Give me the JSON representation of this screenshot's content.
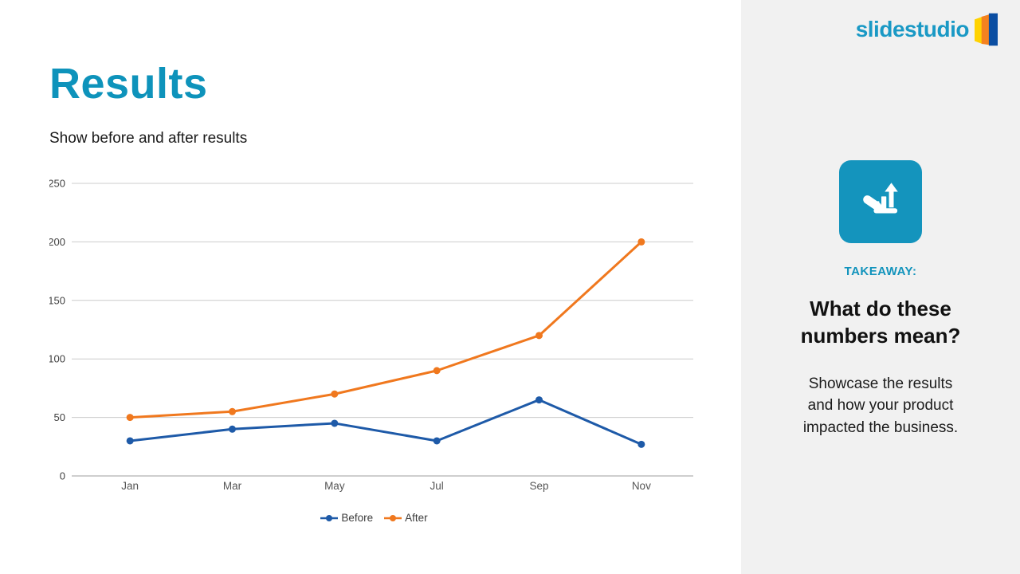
{
  "header": {
    "title": "Results",
    "subtitle": "Show before and after results"
  },
  "chart_data": {
    "type": "line",
    "categories": [
      "Jan",
      "Mar",
      "May",
      "Jul",
      "Sep",
      "Nov"
    ],
    "series": [
      {
        "name": "Before",
        "color": "#1E5AA8",
        "values": [
          30,
          40,
          45,
          30,
          65,
          27
        ]
      },
      {
        "name": "After",
        "color": "#F0781E",
        "values": [
          50,
          55,
          70,
          90,
          120,
          200
        ]
      }
    ],
    "title": "",
    "xlabel": "",
    "ylabel": "",
    "ylim": [
      0,
      250
    ],
    "yticks": [
      0,
      50,
      100,
      150,
      200,
      250
    ],
    "grid": true,
    "legend_position": "bottom"
  },
  "sidebar": {
    "logo_text": "slidestudio",
    "logo_icon": "book-pages-icon",
    "takeaway_icon": "hand-holding-bar-chart-icon",
    "takeaway_label": "TAKEAWAY:",
    "heading": "What do these numbers mean?",
    "body": "Showcase the results and how your product impacted the business."
  },
  "colors": {
    "accent_teal": "#0E93BB",
    "logo_teal": "#1A99C5",
    "takeaway_label_teal": "#1193BC",
    "icon_bg_teal": "#1494BD",
    "before_blue": "#1E5AA8",
    "after_orange": "#F0781E",
    "sidebar_bg": "#F1F1F1",
    "gridline_gray": "#CCCCCC",
    "axis_gray": "#9E9E9E",
    "logo_yellow": "#FFD200",
    "logo_orange": "#F5821F",
    "logo_blue": "#0B4EA2"
  }
}
